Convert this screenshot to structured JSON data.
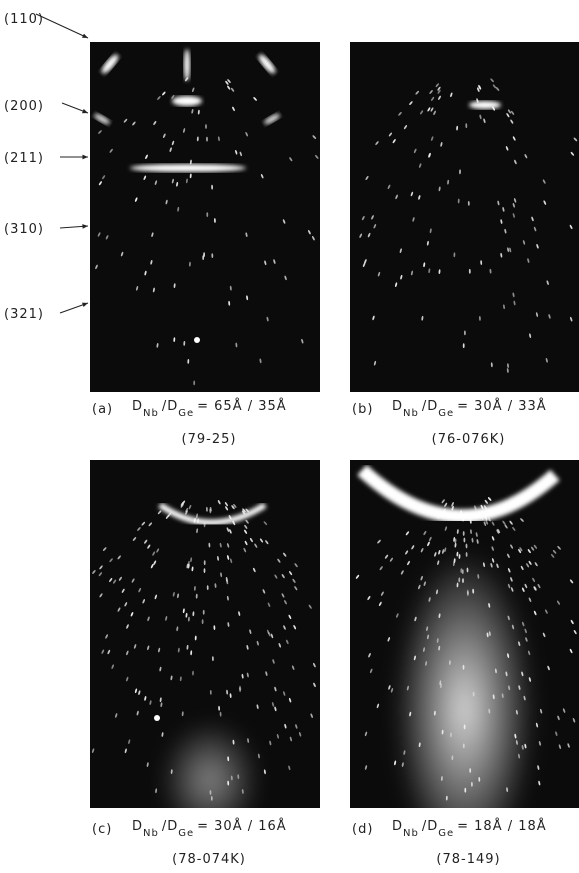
{
  "planes": [
    "(110)",
    "(200)",
    "(211)",
    "(310)",
    "(321)"
  ],
  "panels": [
    {
      "letter": "(a)",
      "symbol": "D",
      "symbol_sub": "Nb",
      "divider": "/D",
      "divider_sub": "Ge",
      "ratio": "= 65Å / 35Å",
      "sample": "(79-25)"
    },
    {
      "letter": "(b)",
      "symbol": "D",
      "symbol_sub": "Nb",
      "divider": "/D",
      "divider_sub": "Ge",
      "ratio": "= 30Å / 33Å",
      "sample": "(76-076K)"
    },
    {
      "letter": "(c)",
      "symbol": "D",
      "symbol_sub": "Nb",
      "divider": "/D",
      "divider_sub": "Ge",
      "ratio": "= 30Å / 16Å",
      "sample": "(78-074K)"
    },
    {
      "letter": "(d)",
      "symbol": "D",
      "symbol_sub": "Nb",
      "divider": "/D",
      "divider_sub": "Ge",
      "ratio": "= 18Å / 18Å",
      "sample": "(78-149)"
    }
  ]
}
